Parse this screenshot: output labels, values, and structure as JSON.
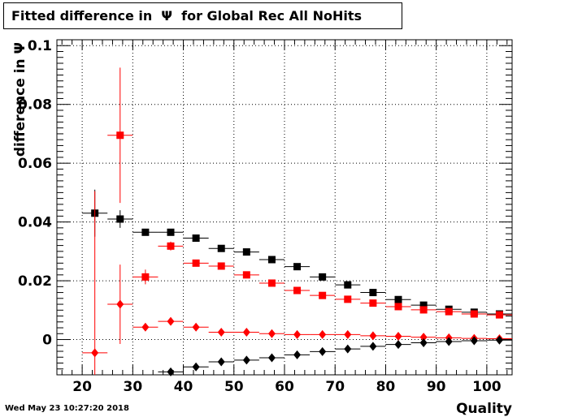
{
  "title": "Fitted difference in  Ψ  for Global Rec All NoHits",
  "timestamp": "Wed May 23 10:27:20 2018",
  "chart_data": {
    "type": "scatter",
    "title": "Fitted difference in  Ψ  for Global Rec All NoHits",
    "xlabel": "Quality",
    "ylabel": "difference in  Ψ",
    "xlim": [
      15,
      105
    ],
    "ylim": [
      -0.012,
      0.102
    ],
    "grid": true,
    "x_ticks": [
      "20",
      "30",
      "40",
      "50",
      "60",
      "70",
      "80",
      "90",
      "100"
    ],
    "y_ticks": [
      "0",
      "0.02",
      "0.04",
      "0.06",
      "0.08",
      "0.1"
    ],
    "bin_halfwidth": 2.5,
    "series": [
      {
        "marker": "square",
        "color": "#000000",
        "x": [
          22.5,
          27.5,
          32.5,
          37.5,
          42.5,
          47.5,
          52.5,
          57.5,
          62.5,
          67.5,
          72.5,
          77.5,
          82.5,
          87.5,
          92.5,
          97.5,
          102.5
        ],
        "y": [
          0.043,
          0.041,
          0.0365,
          0.0365,
          0.0345,
          0.031,
          0.0298,
          0.0272,
          0.0248,
          0.0213,
          0.0186,
          0.016,
          0.0136,
          0.0117,
          0.0103,
          0.0093,
          0.0087
        ],
        "yerr": [
          0.008,
          0.003,
          0.001,
          0.001,
          0.001,
          0.001,
          0.001,
          0.001,
          0.001,
          0.001,
          0.001,
          0.001,
          0.001,
          0.001,
          0.001,
          0.001,
          0.001
        ]
      },
      {
        "marker": "square",
        "color": "#ff0000",
        "x": [
          27.5,
          32.5,
          37.5,
          42.5,
          47.5,
          52.5,
          57.5,
          62.5,
          67.5,
          72.5,
          77.5,
          82.5,
          87.5,
          92.5,
          97.5,
          102.5
        ],
        "y": [
          0.0695,
          0.0213,
          0.0318,
          0.026,
          0.025,
          0.022,
          0.0192,
          0.0167,
          0.015,
          0.0137,
          0.0124,
          0.0112,
          0.0101,
          0.0095,
          0.0087,
          0.0084
        ],
        "yerr": [
          0.023,
          0.0025,
          0.0015,
          0.001,
          0.001,
          0.001,
          0.001,
          0.001,
          0.001,
          0.001,
          0.001,
          0.001,
          0.001,
          0.001,
          0.001,
          0.001
        ]
      },
      {
        "marker": "diamond",
        "color": "#ff0000",
        "x": [
          22.5,
          27.5,
          32.5,
          37.5,
          42.5,
          47.5,
          52.5,
          57.5,
          62.5,
          67.5,
          72.5,
          77.5,
          82.5,
          87.5,
          92.5,
          97.5,
          102.5
        ],
        "y": [
          -0.0045,
          0.012,
          0.0042,
          0.0062,
          0.0042,
          0.0025,
          0.0025,
          0.002,
          0.0017,
          0.0017,
          0.0017,
          0.0013,
          0.0011,
          0.0008,
          0.0006,
          0.0004,
          0.0003
        ],
        "yerr": [
          0.055,
          0.0135,
          0.001,
          0.001,
          0.0008,
          0.0005,
          0.0005,
          0.0005,
          0.0004,
          0.0004,
          0.0004,
          0.0004,
          0.0004,
          0.0004,
          0.0004,
          0.0004,
          0.0004
        ]
      },
      {
        "marker": "diamond",
        "color": "#000000",
        "x": [
          37.5,
          42.5,
          47.5,
          52.5,
          57.5,
          62.5,
          67.5,
          72.5,
          77.5,
          82.5,
          87.5,
          92.5,
          97.5,
          102.5
        ],
        "y": [
          -0.011,
          -0.0093,
          -0.0076,
          -0.007,
          -0.0062,
          -0.0052,
          -0.0041,
          -0.0032,
          -0.0023,
          -0.0017,
          -0.0011,
          -0.0007,
          -0.0004,
          -0.0002
        ],
        "yerr": [
          0.0005,
          0.0005,
          0.0005,
          0.0005,
          0.0005,
          0.0005,
          0.0005,
          0.0005,
          0.0005,
          0.0005,
          0.0005,
          0.0005,
          0.0005,
          0.0005
        ]
      }
    ]
  }
}
